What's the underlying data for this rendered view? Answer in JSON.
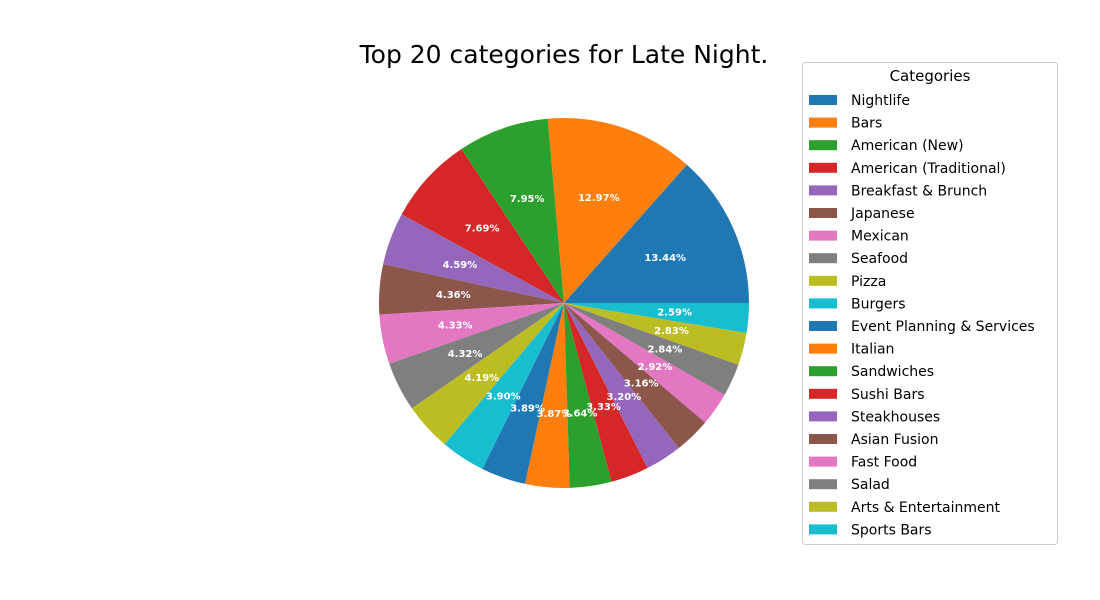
{
  "chart_data": {
    "type": "pie",
    "title": "Top 20 categories for Late Night.",
    "legend_title": "Categories",
    "legend_position": "right",
    "start_angle_deg": 0,
    "direction": "counterclockwise",
    "slices": [
      {
        "label": "Nightlife",
        "value": 13.44,
        "pct_label": "13.44%",
        "color": "#1f77b4"
      },
      {
        "label": "Bars",
        "value": 12.97,
        "pct_label": "12.97%",
        "color": "#ff7f0e"
      },
      {
        "label": "American (New)",
        "value": 7.95,
        "pct_label": "7.95%",
        "color": "#2ca02c"
      },
      {
        "label": "American (Traditional)",
        "value": 7.69,
        "pct_label": "7.69%",
        "color": "#d62728"
      },
      {
        "label": "Breakfast & Brunch",
        "value": 4.59,
        "pct_label": "4.59%",
        "color": "#9467bd"
      },
      {
        "label": "Japanese",
        "value": 4.36,
        "pct_label": "4.36%",
        "color": "#8c564b"
      },
      {
        "label": "Mexican",
        "value": 4.33,
        "pct_label": "4.33%",
        "color": "#e377c2"
      },
      {
        "label": "Seafood",
        "value": 4.32,
        "pct_label": "4.32%",
        "color": "#7f7f7f"
      },
      {
        "label": "Pizza",
        "value": 4.19,
        "pct_label": "4.19%",
        "color": "#bcbd22"
      },
      {
        "label": "Burgers",
        "value": 3.9,
        "pct_label": "3.90%",
        "color": "#17becf"
      },
      {
        "label": "Event Planning & Services",
        "value": 3.89,
        "pct_label": "3.89%",
        "color": "#1f77b4"
      },
      {
        "label": "Italian",
        "value": 3.87,
        "pct_label": "3.87%",
        "color": "#ff7f0e"
      },
      {
        "label": "Sandwiches",
        "value": 3.64,
        "pct_label": "3.64%",
        "color": "#2ca02c"
      },
      {
        "label": "Sushi Bars",
        "value": 3.33,
        "pct_label": "3.33%",
        "color": "#d62728"
      },
      {
        "label": "Steakhouses",
        "value": 3.2,
        "pct_label": "3.20%",
        "color": "#9467bd"
      },
      {
        "label": "Asian Fusion",
        "value": 3.16,
        "pct_label": "3.16%",
        "color": "#8c564b"
      },
      {
        "label": "Fast Food",
        "value": 2.92,
        "pct_label": "2.92%",
        "color": "#e377c2"
      },
      {
        "label": "Salad",
        "value": 2.84,
        "pct_label": "2.84%",
        "color": "#7f7f7f"
      },
      {
        "label": "Arts & Entertainment",
        "value": 2.83,
        "pct_label": "2.83%",
        "color": "#bcbd22"
      },
      {
        "label": "Sports Bars",
        "value": 2.59,
        "pct_label": "2.59%",
        "color": "#17becf"
      }
    ]
  }
}
